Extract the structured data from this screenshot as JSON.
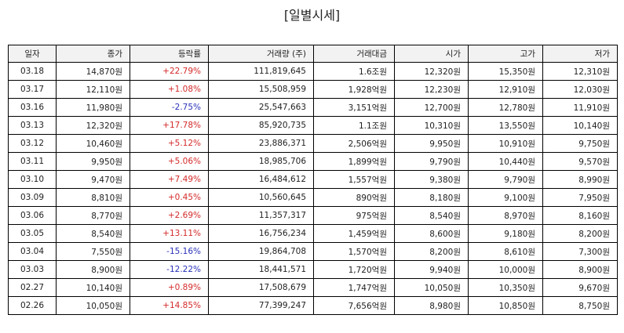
{
  "title": "[일별시세]",
  "colors": {
    "up": "#d42a2a",
    "down": "#2a32b8",
    "header_bg": "#f2f2f2"
  },
  "columns": [
    "일자",
    "종가",
    "등락률",
    "거래량 (주)",
    "거래대금",
    "시가",
    "고가",
    "저가"
  ],
  "rows": [
    {
      "date": "03.18",
      "close": "14,870원",
      "change": "+22.79%",
      "dir": "up",
      "volume": "111,819,645",
      "amount": "1.6조원",
      "open": "12,320원",
      "high": "15,350원",
      "low": "12,310원"
    },
    {
      "date": "03.17",
      "close": "12,110원",
      "change": "+1.08%",
      "dir": "up",
      "volume": "15,508,959",
      "amount": "1,928억원",
      "open": "12,230원",
      "high": "12,910원",
      "low": "12,030원"
    },
    {
      "date": "03.16",
      "close": "11,980원",
      "change": "-2.75%",
      "dir": "down",
      "volume": "25,547,663",
      "amount": "3,151억원",
      "open": "12,700원",
      "high": "12,780원",
      "low": "11,910원"
    },
    {
      "date": "03.13",
      "close": "12,320원",
      "change": "+17.78%",
      "dir": "up",
      "volume": "85,920,735",
      "amount": "1.1조원",
      "open": "10,310원",
      "high": "13,550원",
      "low": "10,140원"
    },
    {
      "date": "03.12",
      "close": "10,460원",
      "change": "+5.12%",
      "dir": "up",
      "volume": "23,886,371",
      "amount": "2,506억원",
      "open": "9,950원",
      "high": "10,910원",
      "low": "9,750원"
    },
    {
      "date": "03.11",
      "close": "9,950원",
      "change": "+5.06%",
      "dir": "up",
      "volume": "18,985,706",
      "amount": "1,899억원",
      "open": "9,790원",
      "high": "10,440원",
      "low": "9,570원"
    },
    {
      "date": "03.10",
      "close": "9,470원",
      "change": "+7.49%",
      "dir": "up",
      "volume": "16,484,612",
      "amount": "1,557억원",
      "open": "9,380원",
      "high": "9,790원",
      "low": "8,990원"
    },
    {
      "date": "03.09",
      "close": "8,810원",
      "change": "+0.45%",
      "dir": "up",
      "volume": "10,560,645",
      "amount": "890억원",
      "open": "8,180원",
      "high": "9,100원",
      "low": "7,950원"
    },
    {
      "date": "03.06",
      "close": "8,770원",
      "change": "+2.69%",
      "dir": "up",
      "volume": "11,357,317",
      "amount": "975억원",
      "open": "8,540원",
      "high": "8,970원",
      "low": "8,160원"
    },
    {
      "date": "03.05",
      "close": "8,540원",
      "change": "+13.11%",
      "dir": "up",
      "volume": "16,756,234",
      "amount": "1,459억원",
      "open": "8,600원",
      "high": "9,180원",
      "low": "8,200원"
    },
    {
      "date": "03.04",
      "close": "7,550원",
      "change": "-15.16%",
      "dir": "down",
      "volume": "19,864,708",
      "amount": "1,570억원",
      "open": "8,200원",
      "high": "8,610원",
      "low": "7,300원"
    },
    {
      "date": "03.03",
      "close": "8,900원",
      "change": "-12.22%",
      "dir": "down",
      "volume": "18,441,571",
      "amount": "1,720억원",
      "open": "9,940원",
      "high": "10,000원",
      "low": "8,900원"
    },
    {
      "date": "02.27",
      "close": "10,140원",
      "change": "+0.89%",
      "dir": "up",
      "volume": "17,508,679",
      "amount": "1,747억원",
      "open": "10,050원",
      "high": "10,350원",
      "low": "9,670원"
    },
    {
      "date": "02.26",
      "close": "10,050원",
      "change": "+14.85%",
      "dir": "up",
      "volume": "77,399,247",
      "amount": "7,656억원",
      "open": "8,980원",
      "high": "10,850원",
      "low": "8,750원"
    }
  ]
}
